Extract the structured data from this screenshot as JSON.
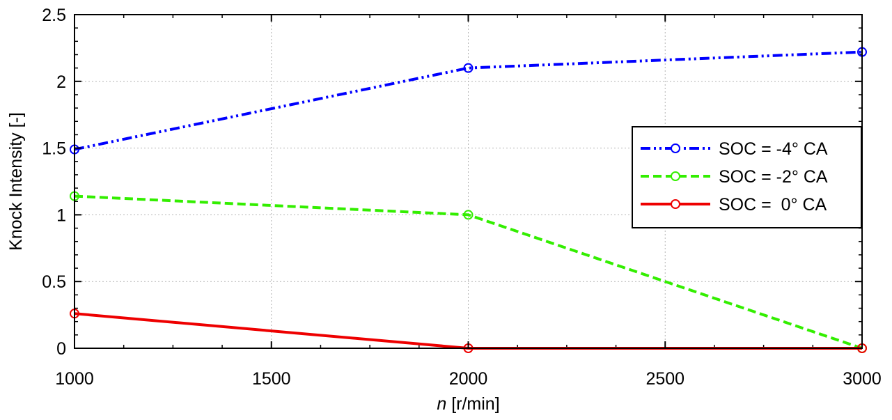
{
  "chart_data": {
    "type": "line",
    "title": "",
    "xlabel_symbol": "n",
    "xlabel_unit": " [r/min]",
    "ylabel": "Knock Intensity [-]",
    "xlim": [
      1000,
      3000
    ],
    "ylim": [
      0,
      2.5
    ],
    "x_ticks": [
      1000,
      1500,
      2000,
      2500,
      3000
    ],
    "x_tick_labels": [
      "1000",
      "1500",
      "2000",
      "2500",
      "3000"
    ],
    "y_ticks": [
      0,
      0.5,
      1,
      1.5,
      2,
      2.5
    ],
    "y_tick_labels": [
      "0",
      "0.5",
      "1",
      "1.5",
      "2",
      "2.5"
    ],
    "grid": true,
    "legend_position": "right",
    "series": [
      {
        "name": "SOC = -4° CA",
        "color": "#0000ff",
        "dash": "dash-dot-dot",
        "x": [
          1000,
          2000,
          3000
        ],
        "y": [
          1.49,
          2.1,
          2.22
        ]
      },
      {
        "name": "SOC = -2° CA",
        "color": "#33ee00",
        "dash": "dashed",
        "x": [
          1000,
          2000,
          3000
        ],
        "y": [
          1.14,
          1.0,
          0.0
        ]
      },
      {
        "name": "SOC =  0° CA",
        "color": "#ee0000",
        "dash": "solid",
        "x": [
          1000,
          2000,
          3000
        ],
        "y": [
          0.26,
          0.0,
          0.0
        ]
      }
    ]
  }
}
